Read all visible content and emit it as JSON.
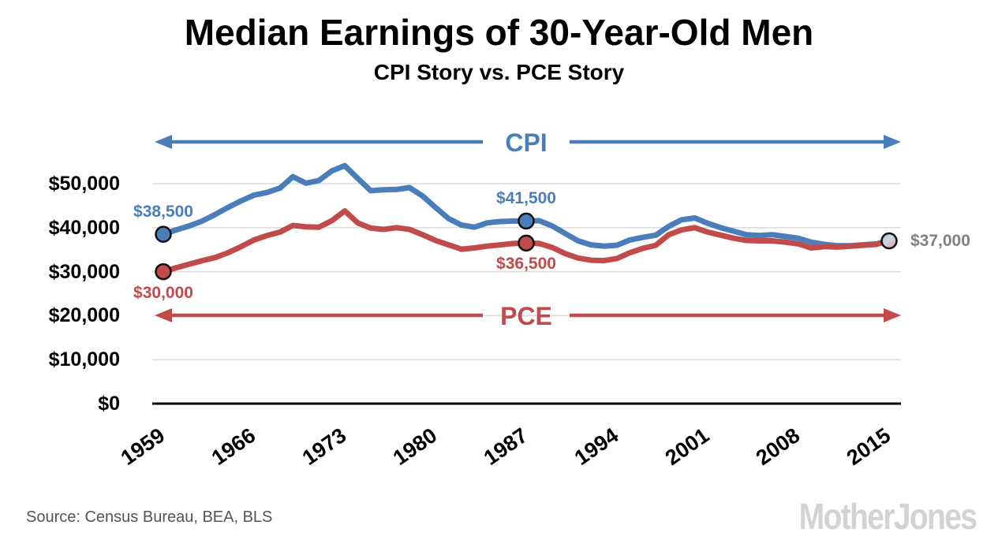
{
  "header": {
    "title": "Median Earnings of 30-Year-Old Men",
    "subtitle": "CPI Story vs. PCE Story"
  },
  "chart_data": {
    "type": "line",
    "title": "Median Earnings of 30-Year-Old Men",
    "subtitle": "CPI Story vs. PCE Story",
    "xlabel": "",
    "ylabel": "",
    "grid": true,
    "xlim": [
      1959,
      2015
    ],
    "ylim": [
      0,
      55000
    ],
    "x_ticks": [
      "1959",
      "1966",
      "1973",
      "1980",
      "1987",
      "1994",
      "2001",
      "2008",
      "2015"
    ],
    "y_ticks": [
      {
        "value": 0,
        "label": "$0"
      },
      {
        "value": 10000,
        "label": "$10,000"
      },
      {
        "value": 20000,
        "label": "$20,000"
      },
      {
        "value": 30000,
        "label": "$30,000"
      },
      {
        "value": 40000,
        "label": "$40,000"
      },
      {
        "value": 50000,
        "label": "$50,000"
      }
    ],
    "x": [
      1959,
      1960,
      1961,
      1962,
      1963,
      1964,
      1965,
      1966,
      1967,
      1968,
      1969,
      1970,
      1971,
      1972,
      1973,
      1974,
      1975,
      1976,
      1977,
      1978,
      1979,
      1980,
      1981,
      1982,
      1983,
      1984,
      1985,
      1986,
      1987,
      1988,
      1989,
      1990,
      1991,
      1992,
      1993,
      1994,
      1995,
      1996,
      1997,
      1998,
      1999,
      2000,
      2001,
      2002,
      2003,
      2004,
      2005,
      2006,
      2007,
      2008,
      2009,
      2010,
      2011,
      2012,
      2013,
      2014,
      2015
    ],
    "series": [
      {
        "name": "CPI",
        "color": "#4a7eba",
        "values": [
          38500,
          39500,
          40400,
          41500,
          43000,
          44600,
          46100,
          47400,
          48000,
          49000,
          51600,
          50100,
          50700,
          52900,
          54100,
          51200,
          48400,
          48600,
          48700,
          49100,
          47200,
          44600,
          42100,
          40600,
          40100,
          41100,
          41400,
          41500,
          41500,
          41600,
          40400,
          38700,
          37000,
          36100,
          35800,
          36000,
          37200,
          37800,
          38300,
          40300,
          41800,
          42200,
          41000,
          40000,
          39200,
          38400,
          38200,
          38400,
          38000,
          37600,
          36700,
          36200,
          35900,
          35900,
          36100,
          36300,
          37000
        ]
      },
      {
        "name": "PCE",
        "color": "#c04b4a",
        "values": [
          30000,
          30900,
          31700,
          32500,
          33200,
          34300,
          35700,
          37200,
          38200,
          39000,
          40500,
          40200,
          40100,
          41600,
          43800,
          41100,
          39900,
          39600,
          40000,
          39600,
          38400,
          37100,
          36100,
          35100,
          35400,
          35800,
          36100,
          36400,
          36500,
          36400,
          35500,
          34100,
          33100,
          32600,
          32500,
          33000,
          34300,
          35300,
          36000,
          38400,
          39500,
          40000,
          39000,
          38300,
          37600,
          37100,
          37000,
          37000,
          36700,
          36300,
          35400,
          35700,
          35600,
          35800,
          36000,
          36200,
          37000
        ]
      }
    ],
    "arrows": [
      {
        "label": "CPI",
        "color": "#4a7eba"
      },
      {
        "label": "PCE",
        "color": "#c04b4a"
      }
    ],
    "markers": [
      {
        "series": "CPI",
        "year": 1959
      },
      {
        "series": "PCE",
        "year": 1959
      },
      {
        "series": "CPI",
        "year": 1987
      },
      {
        "series": "PCE",
        "year": 1987
      },
      {
        "series": "blend",
        "year": 2015
      }
    ],
    "annotations": [
      {
        "series": "CPI",
        "year": 1959,
        "label": "$38,500",
        "color": "#4a7eba",
        "position": "above"
      },
      {
        "series": "PCE",
        "year": 1959,
        "label": "$30,000",
        "color": "#c04b4a",
        "position": "below"
      },
      {
        "series": "CPI",
        "year": 1987,
        "label": "$41,500",
        "color": "#4a7eba",
        "position": "above"
      },
      {
        "series": "PCE",
        "year": 1987,
        "label": "$36,500",
        "color": "#c04b4a",
        "position": "below"
      },
      {
        "series": "blend",
        "year": 2015,
        "label": "$37,000",
        "color": "#808080",
        "position": "right"
      }
    ],
    "colors": {
      "cpi_blue": "#4a7eba",
      "pce_red": "#c04b4a",
      "gridline": "#dbdbdb",
      "axis": "#000000",
      "end_label_gray": "#808080"
    }
  },
  "footer": {
    "source": "Source: Census Bureau, BEA, BLS",
    "logo": "MotherJones"
  }
}
